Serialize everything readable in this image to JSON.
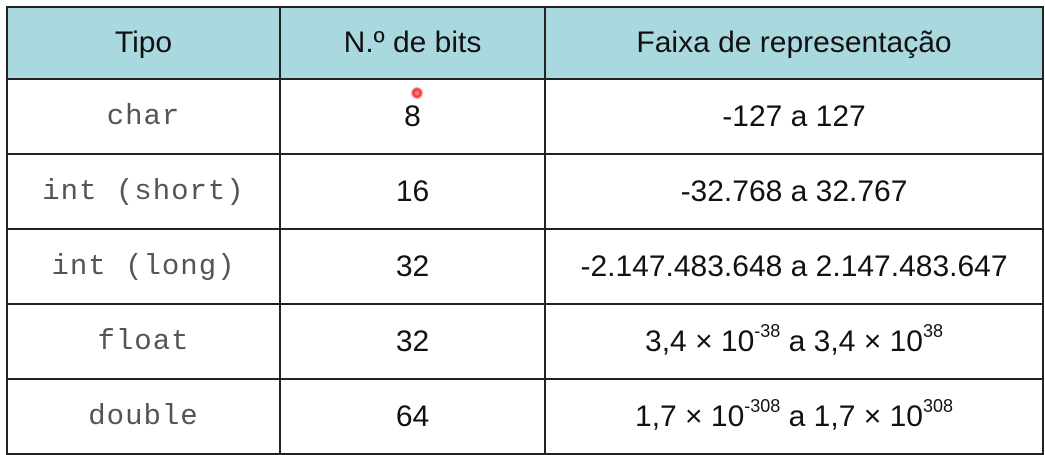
{
  "table": {
    "headers": [
      "Tipo",
      "N.º de bits",
      "Faixa de representação"
    ],
    "rows": [
      {
        "type": "char",
        "bits": "8",
        "range": {
          "low": "-127",
          "sep": " a ",
          "high": "127"
        }
      },
      {
        "type": "int (short)",
        "bits": "16",
        "range": {
          "low": "-32.768",
          "sep": " a ",
          "high": "32.767"
        }
      },
      {
        "type": "int (long)",
        "bits": "32",
        "range": {
          "low": "-2.147.483.648",
          "sep": " a ",
          "high": "2.147.483.647"
        }
      },
      {
        "type": "float",
        "bits": "32",
        "range": {
          "mantissa1": "3,4 × 10",
          "exp1": "-38",
          "sep": " a ",
          "mantissa2": "3,4 × 10",
          "exp2": "38"
        }
      },
      {
        "type": "double",
        "bits": "64",
        "range": {
          "mantissa1": "1,7 × 10",
          "exp1": "-308",
          "sep": " a ",
          "mantissa2": "1,7 × 10",
          "exp2": "308"
        }
      }
    ]
  },
  "colors": {
    "header_bg": "#a9d8de",
    "border": "#222222",
    "cursor": "#e33333"
  },
  "icons": {
    "cursor": "mouse-pointer-dot-icon"
  }
}
